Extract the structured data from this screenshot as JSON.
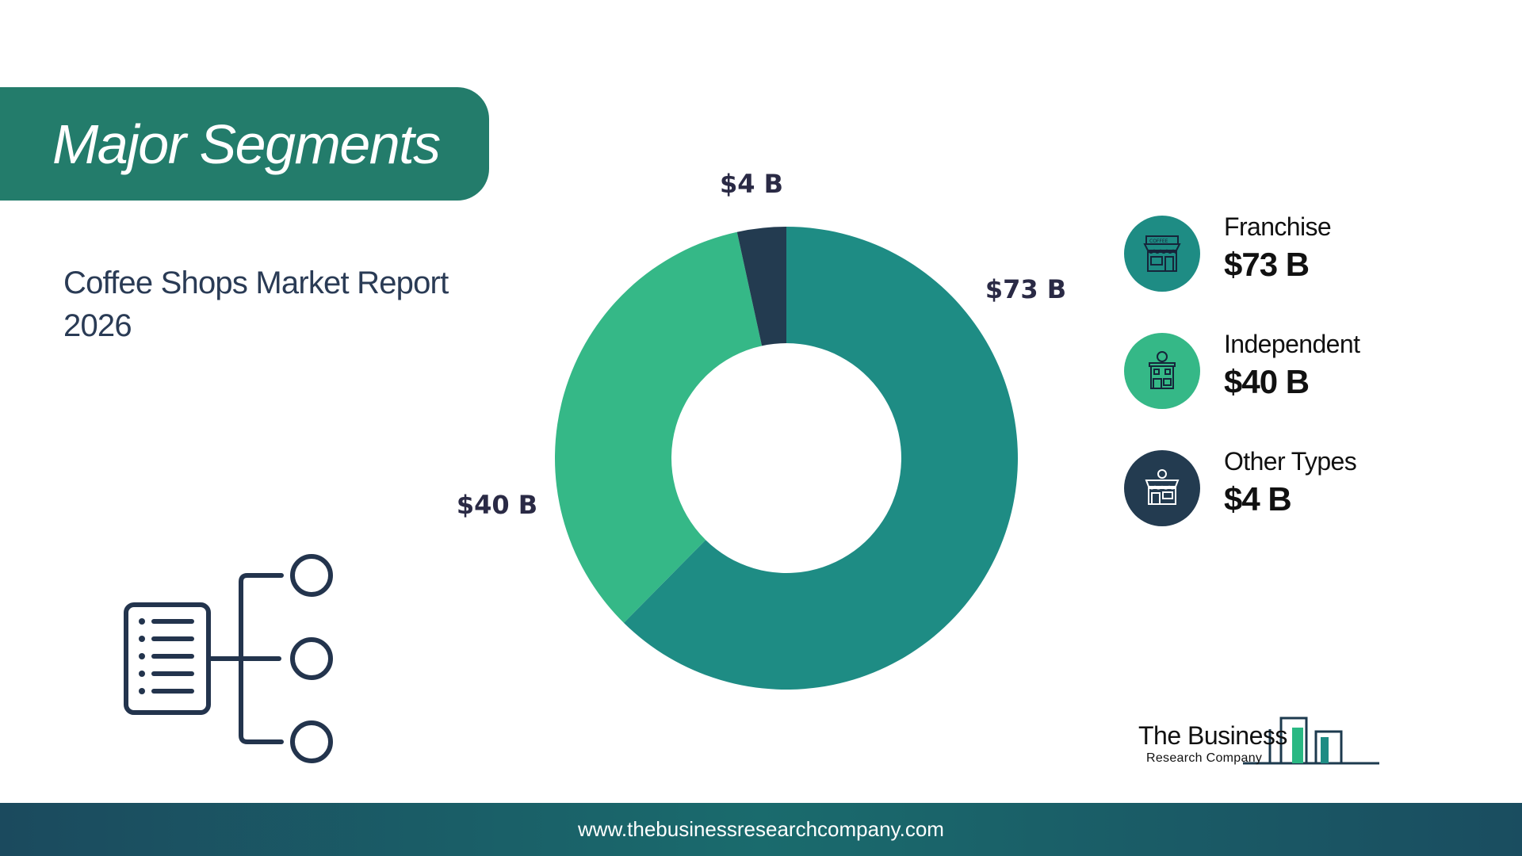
{
  "header": {
    "title": "Major Segments"
  },
  "report": {
    "subtitle": "Coffee Shops Market Report 2026"
  },
  "chart_data": {
    "type": "pie",
    "donut": true,
    "unit": "B",
    "categories": [
      "Franchise",
      "Independent",
      "Other Types"
    ],
    "values": [
      73,
      40,
      4
    ],
    "value_labels": [
      "$73 B",
      "$40 B",
      "$4 B"
    ],
    "colors": [
      "#1e8c84",
      "#35b887",
      "#233b50"
    ],
    "legend_position": "right"
  },
  "legend": {
    "items": [
      {
        "name": "Franchise",
        "value": "$73 B",
        "color": "#1e8c84",
        "icon": "coffee-storefront-icon"
      },
      {
        "name": "Independent",
        "value": "$40 B",
        "color": "#35b887",
        "icon": "coffee-shop-building-icon"
      },
      {
        "name": "Other Types",
        "value": "$4 B",
        "color": "#233b50",
        "icon": "store-icon"
      }
    ]
  },
  "logo": {
    "line1": "The Business",
    "line2": "Research Company"
  },
  "footer": {
    "url": "www.thebusinessresearchcompany.com"
  },
  "decor": {
    "segments_icon": "list-hierarchy-icon"
  }
}
